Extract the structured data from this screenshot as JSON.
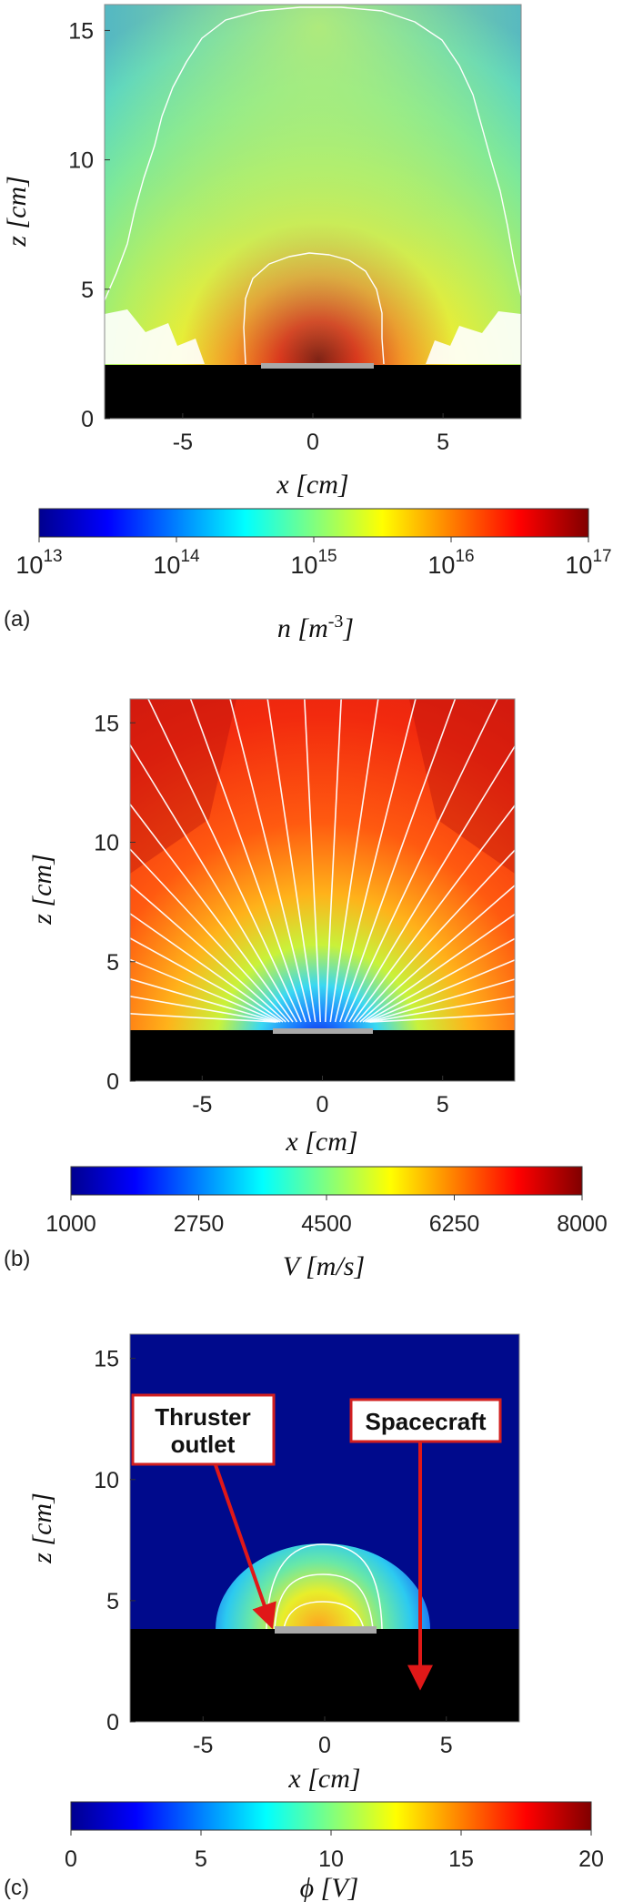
{
  "chart_data": [
    {
      "panel": "(a)",
      "type": "heatmap",
      "quantity": "plasma density",
      "xlabel": "x [cm]",
      "ylabel": "z [cm]",
      "xlim": [
        -8,
        8
      ],
      "ylim": [
        0,
        16
      ],
      "xticks": [
        "-5",
        "0",
        "5"
      ],
      "yticks": [
        "0",
        "5",
        "10",
        "15"
      ],
      "colorbar": {
        "label": "n [m",
        "label_exp": "-3",
        "label_end": "]",
        "scale": "log",
        "ticks": [
          "13",
          "14",
          "15",
          "16",
          "17"
        ],
        "tick_base": "10",
        "min": 10000000000000.0,
        "max": 1e+17
      },
      "contours": true,
      "spacecraft_surface_z": 2.2,
      "outlet_half_width": 2
    },
    {
      "panel": "(b)",
      "type": "heatmap",
      "quantity": "ion velocity with streamlines",
      "xlabel": "x [cm]",
      "ylabel": "z [cm]",
      "xlim": [
        -8,
        8
      ],
      "ylim": [
        0,
        16
      ],
      "xticks": [
        "-5",
        "0",
        "5"
      ],
      "yticks": [
        "0",
        "5",
        "10",
        "15"
      ],
      "colorbar": {
        "label": "V [m/s]",
        "scale": "linear",
        "ticks": [
          "1000",
          "2750",
          "4500",
          "6250",
          "8000"
        ],
        "min": 1000,
        "max": 8000
      },
      "streamlines": true,
      "spacecraft_surface_z": 2.2,
      "outlet_half_width": 2
    },
    {
      "panel": "(c)",
      "type": "heatmap",
      "quantity": "electric potential",
      "xlabel": "x [cm]",
      "ylabel": "z [cm]",
      "xlim": [
        -8,
        8
      ],
      "ylim": [
        0,
        16
      ],
      "xticks": [
        "-5",
        "0",
        "5"
      ],
      "yticks": [
        "0",
        "5",
        "10",
        "15"
      ],
      "colorbar": {
        "label": "ϕ [V]",
        "scale": "linear",
        "ticks": [
          "0",
          "5",
          "10",
          "15",
          "20"
        ],
        "min": 0,
        "max": 20
      },
      "annotations": [
        {
          "text_line1": "Thruster",
          "text_line2": "outlet",
          "arrow_to": [
            -2,
            2.2
          ]
        },
        {
          "text_line1": "Spacecraft",
          "arrow_to": [
            4,
            1.2
          ]
        }
      ],
      "spacecraft_surface_z": 2.2,
      "outlet_half_width": 2
    }
  ],
  "colors": {
    "spacecraft": "#000000",
    "outlet": "#a9a9a9",
    "contour": "#ffffff",
    "callout_border": "#d21f1f",
    "arrow": "#e01818"
  }
}
